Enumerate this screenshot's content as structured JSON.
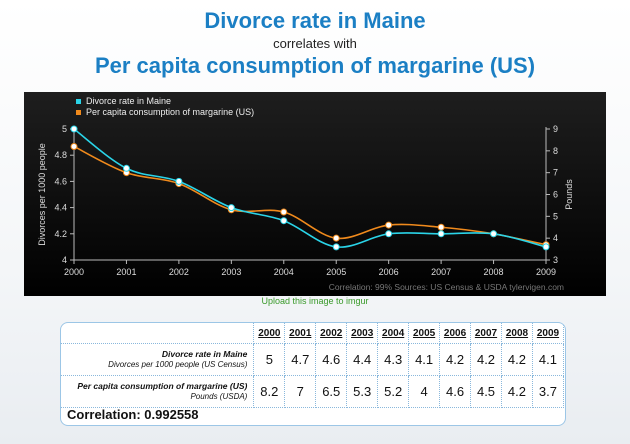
{
  "header": {
    "title1": "Divorce rate in Maine",
    "title2": "correlates with",
    "title3": "Per capita consumption of margarine (US)"
  },
  "chart_data": {
    "type": "line",
    "x": [
      2000,
      2001,
      2002,
      2003,
      2004,
      2005,
      2006,
      2007,
      2008,
      2009
    ],
    "series": [
      {
        "name": "Divorce rate in Maine",
        "axis": "left",
        "color": "#2ad4e8",
        "values": [
          5,
          4.7,
          4.6,
          4.4,
          4.3,
          4.1,
          4.2,
          4.2,
          4.2,
          4.1
        ]
      },
      {
        "name": "Per capita consumption of margarine (US)",
        "axis": "right",
        "color": "#f08a1c",
        "values": [
          8.2,
          7,
          6.5,
          5.3,
          5.2,
          4,
          4.6,
          4.5,
          4.2,
          3.7
        ]
      }
    ],
    "ylabel_left": "Divorces per 1000 people",
    "ylabel_right": "Pounds",
    "ylim_left": [
      4,
      5
    ],
    "ylim_right": [
      3,
      9
    ],
    "yticks_left": [
      "4",
      "4.2",
      "4.4",
      "4.6",
      "4.8",
      "5"
    ],
    "yticks_right": [
      "3",
      "4",
      "5",
      "6",
      "7",
      "8",
      "9"
    ],
    "xticks": [
      "2000",
      "2001",
      "2002",
      "2003",
      "2004",
      "2005",
      "2006",
      "2007",
      "2008",
      "2009"
    ],
    "footer": "Correlation: 99%    Sources: US Census & USDA    tylervigen.com",
    "legend_position": "top-left",
    "background": "#000000"
  },
  "upload_link": "Upload this image to imgur",
  "table": {
    "years": [
      "2000",
      "2001",
      "2002",
      "2003",
      "2004",
      "2005",
      "2006",
      "2007",
      "2008",
      "2009"
    ],
    "rows": [
      {
        "title": "Divorce rate in Maine",
        "subtitle": "Divorces per 1000 people (US Census)",
        "values": [
          "5",
          "4.7",
          "4.6",
          "4.4",
          "4.3",
          "4.1",
          "4.2",
          "4.2",
          "4.2",
          "4.1"
        ]
      },
      {
        "title": "Per capita consumption of margarine (US)",
        "subtitle": "Pounds (USDA)",
        "values": [
          "8.2",
          "7",
          "6.5",
          "5.3",
          "5.2",
          "4",
          "4.6",
          "4.5",
          "4.2",
          "3.7"
        ]
      }
    ],
    "correlation": "Correlation: 0.992558"
  }
}
